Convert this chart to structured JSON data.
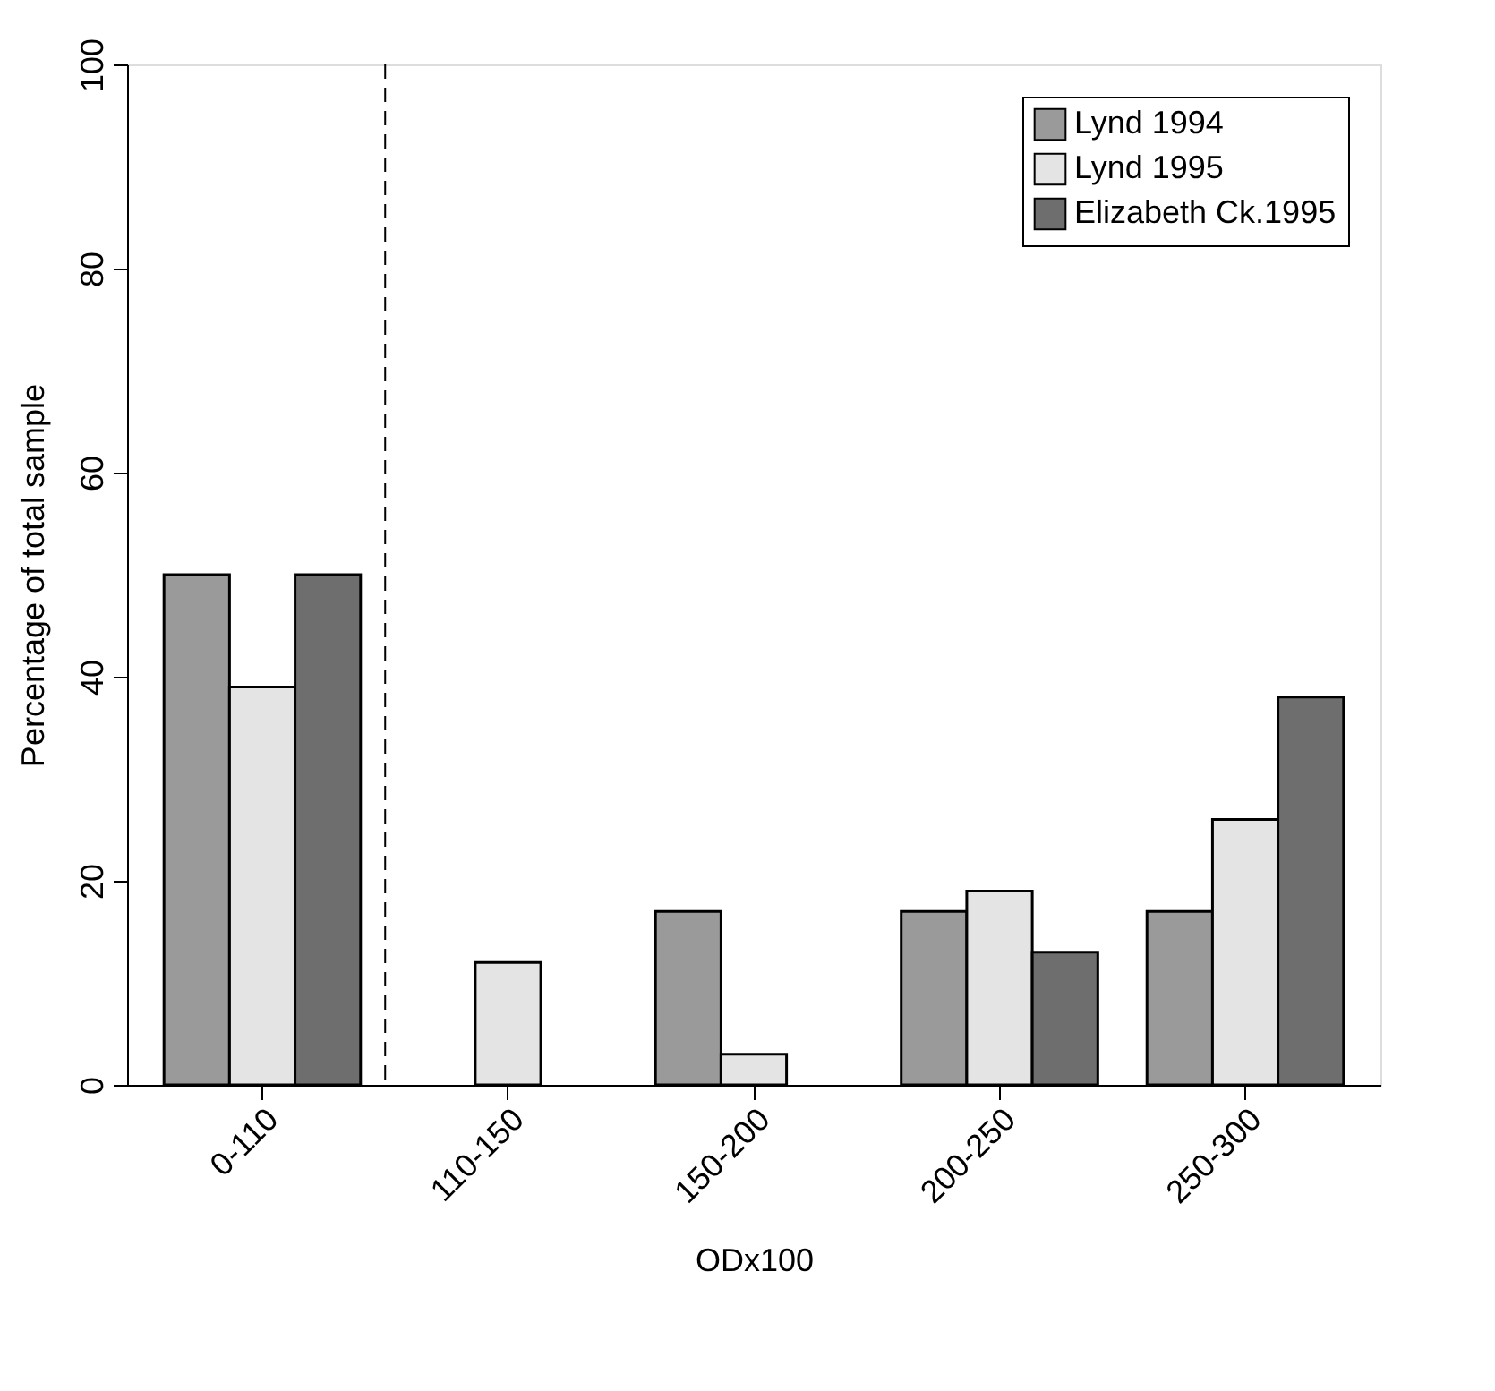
{
  "chart_data": {
    "type": "bar",
    "xlabel": "ODx100",
    "ylabel": "Percentage of total sample",
    "categories": [
      "0-110",
      "110-150",
      "150-200",
      "200-250",
      "250-300"
    ],
    "series": [
      {
        "name": "Lynd 1994",
        "color": "#9a9a9a",
        "values": [
          50,
          null,
          17,
          17,
          17
        ]
      },
      {
        "name": "Lynd 1995",
        "color": "#e4e4e4",
        "values": [
          39,
          12,
          3,
          19,
          26
        ]
      },
      {
        "name": "Elizabeth Ck.1995",
        "color": "#6e6e6e",
        "values": [
          50,
          null,
          null,
          13,
          38
        ]
      }
    ],
    "ylim": [
      0,
      100
    ],
    "yticks": [
      0,
      20,
      40,
      60,
      80,
      100
    ],
    "grid": false,
    "legend": "top right"
  }
}
